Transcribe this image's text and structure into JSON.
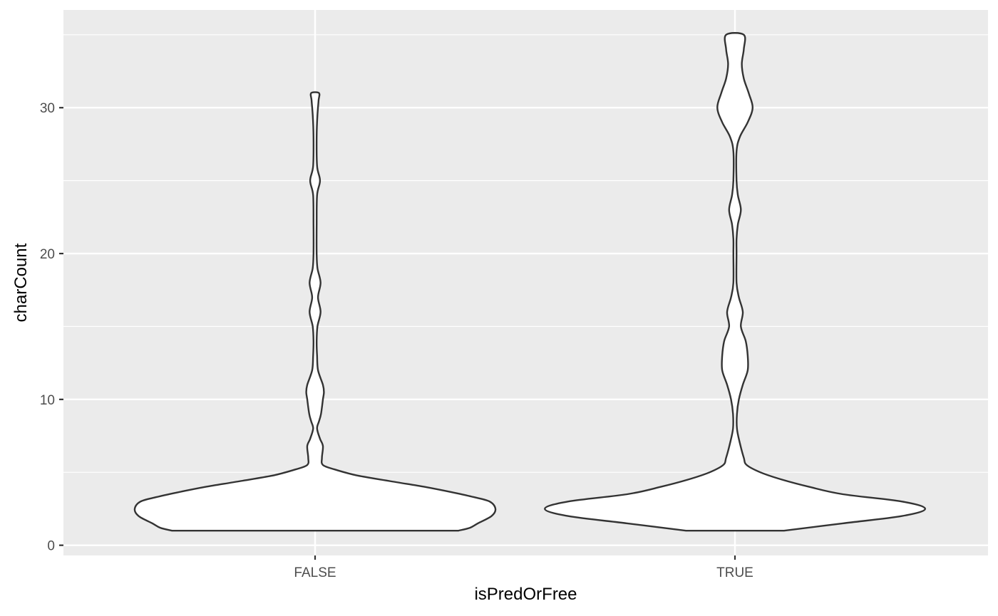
{
  "chart_data": {
    "type": "violin",
    "xlabel": "isPredOrFree",
    "ylabel": "charCount",
    "categories": [
      "FALSE",
      "TRUE"
    ],
    "ylim": [
      -0.7,
      36.7
    ],
    "y_ticks": [
      0,
      10,
      20,
      30
    ],
    "y_minor_ticks": [
      5,
      15,
      25,
      35
    ],
    "grid": true,
    "panel_background": "#ebebeb",
    "grid_color": "#ffffff",
    "violin_fill": "#ffffff",
    "violin_stroke": "#333333",
    "violins": [
      {
        "category": "FALSE",
        "y_min": 1,
        "y_max": 31,
        "density_profile": [
          [
            1,
            0.73
          ],
          [
            1.2,
            0.79
          ],
          [
            1.5,
            0.83
          ],
          [
            2,
            0.9
          ],
          [
            2.5,
            0.92
          ],
          [
            3,
            0.89
          ],
          [
            3.3,
            0.81
          ],
          [
            3.6,
            0.71
          ],
          [
            4,
            0.56
          ],
          [
            4.4,
            0.38
          ],
          [
            4.8,
            0.21
          ],
          [
            5.2,
            0.1
          ],
          [
            5.5,
            0.04
          ],
          [
            6,
            0.035
          ],
          [
            6.8,
            0.04
          ],
          [
            7.3,
            0.025
          ],
          [
            8,
            0.01
          ],
          [
            8.5,
            0.02
          ],
          [
            9,
            0.03
          ],
          [
            10,
            0.04
          ],
          [
            10.5,
            0.045
          ],
          [
            11,
            0.04
          ],
          [
            12,
            0.015
          ],
          [
            13,
            0.01
          ],
          [
            14,
            0.008
          ],
          [
            15,
            0.012
          ],
          [
            16,
            0.028
          ],
          [
            17,
            0.015
          ],
          [
            18,
            0.028
          ],
          [
            19,
            0.012
          ],
          [
            20,
            0.008
          ],
          [
            22,
            0.008
          ],
          [
            24,
            0.01
          ],
          [
            25,
            0.025
          ],
          [
            26,
            0.01
          ],
          [
            28,
            0.008
          ],
          [
            29.5,
            0.012
          ],
          [
            30.5,
            0.018
          ],
          [
            31,
            0.02
          ]
        ]
      },
      {
        "category": "TRUE",
        "y_min": 1,
        "y_max": 35,
        "density_profile": [
          [
            1,
            0.25
          ],
          [
            1.5,
            0.55
          ],
          [
            2,
            0.85
          ],
          [
            2.5,
            0.97
          ],
          [
            3,
            0.85
          ],
          [
            3.5,
            0.55
          ],
          [
            4,
            0.38
          ],
          [
            4.5,
            0.24
          ],
          [
            5,
            0.13
          ],
          [
            5.5,
            0.06
          ],
          [
            6,
            0.045
          ],
          [
            7,
            0.025
          ],
          [
            8,
            0.01
          ],
          [
            9,
            0.01
          ],
          [
            10,
            0.02
          ],
          [
            11,
            0.04
          ],
          [
            12,
            0.065
          ],
          [
            13,
            0.065
          ],
          [
            14,
            0.055
          ],
          [
            15,
            0.03
          ],
          [
            16,
            0.04
          ],
          [
            17,
            0.02
          ],
          [
            18,
            0.008
          ],
          [
            20,
            0.008
          ],
          [
            21,
            0.008
          ],
          [
            22,
            0.015
          ],
          [
            23,
            0.03
          ],
          [
            24,
            0.015
          ],
          [
            25,
            0.008
          ],
          [
            27,
            0.008
          ],
          [
            28,
            0.025
          ],
          [
            29,
            0.065
          ],
          [
            30,
            0.09
          ],
          [
            31,
            0.07
          ],
          [
            32,
            0.045
          ],
          [
            33,
            0.035
          ],
          [
            34,
            0.045
          ],
          [
            35,
            0.045
          ]
        ]
      }
    ]
  }
}
